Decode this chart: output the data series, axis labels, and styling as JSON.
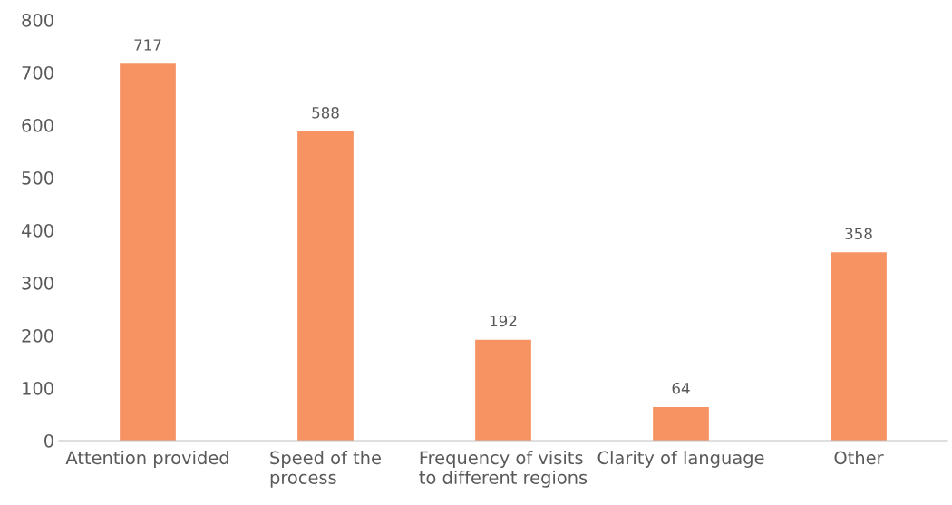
{
  "chart_data": {
    "type": "bar",
    "categories": [
      "Attention provided",
      "Speed of the\nprocess",
      "Frequency of visits\nto different regions",
      "Clarity of language",
      "Other"
    ],
    "values": [
      717,
      588,
      192,
      64,
      358
    ],
    "color": "#f79263",
    "ylim": [
      0,
      800
    ],
    "yticks": [
      0,
      100,
      200,
      300,
      400,
      500,
      600,
      700,
      800
    ],
    "grid": false,
    "data_labels": true
  }
}
